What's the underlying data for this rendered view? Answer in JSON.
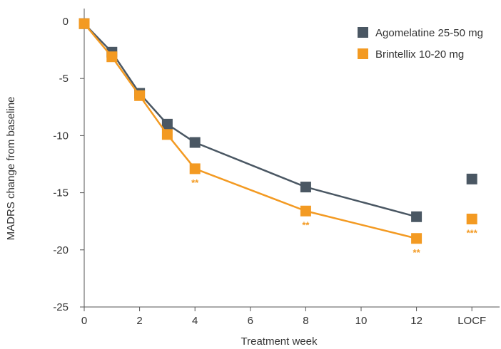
{
  "chart_data": {
    "type": "line",
    "xlabel": "Treatment week",
    "ylabel": "MADRS change from baseline",
    "x_ticks": [
      {
        "value": 0,
        "label": "0"
      },
      {
        "value": 2,
        "label": "2"
      },
      {
        "value": 4,
        "label": "4"
      },
      {
        "value": 6,
        "label": "6"
      },
      {
        "value": 8,
        "label": "8"
      },
      {
        "value": 10,
        "label": "10"
      },
      {
        "value": 12,
        "label": "12"
      },
      {
        "value": 14,
        "label": "LOCF"
      }
    ],
    "xlim": [
      0,
      15
    ],
    "ylim": [
      -25,
      0
    ],
    "y_ticks": [
      0,
      -5,
      -10,
      -15,
      -20,
      -25
    ],
    "grid": false,
    "legend_position": "top-right",
    "series": [
      {
        "name": "Agomelatine 25-50 mg",
        "color": "#4a5763",
        "points": [
          {
            "x": 0,
            "y": -0.2
          },
          {
            "x": 1,
            "y": -2.7
          },
          {
            "x": 2,
            "y": -6.3
          },
          {
            "x": 3,
            "y": -9.0
          },
          {
            "x": 4,
            "y": -10.6
          },
          {
            "x": 8,
            "y": -14.5
          },
          {
            "x": 12,
            "y": -17.1
          }
        ],
        "locf": {
          "x": 14,
          "y": -13.8
        }
      },
      {
        "name": "Brintellix 10-20 mg",
        "color": "#f39a22",
        "points": [
          {
            "x": 0,
            "y": -0.2
          },
          {
            "x": 1,
            "y": -3.1
          },
          {
            "x": 2,
            "y": -6.5
          },
          {
            "x": 3,
            "y": -9.9
          },
          {
            "x": 4,
            "y": -12.9
          },
          {
            "x": 8,
            "y": -16.6
          },
          {
            "x": 12,
            "y": -19.0
          }
        ],
        "locf": {
          "x": 14,
          "y": -17.3
        }
      }
    ],
    "annotations": [
      {
        "x": 4,
        "y": -12.9,
        "text": "**"
      },
      {
        "x": 8,
        "y": -16.6,
        "text": "**"
      },
      {
        "x": 12,
        "y": -19.0,
        "text": "**"
      },
      {
        "x": 14,
        "y": -17.3,
        "text": "***"
      }
    ]
  }
}
